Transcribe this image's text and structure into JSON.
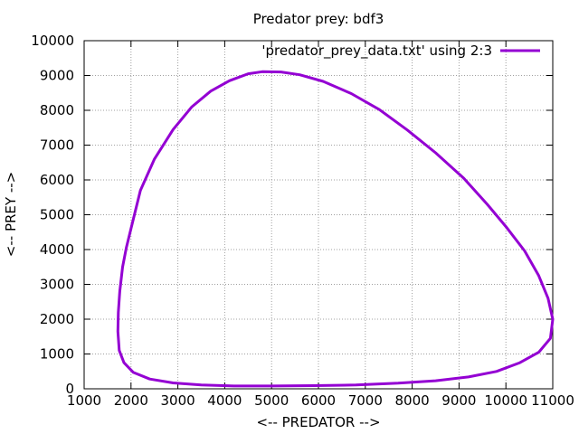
{
  "chart_data": {
    "type": "line",
    "title": "Predator prey: bdf3",
    "xlabel": "<-- PREDATOR -->",
    "ylabel": "<-- PREY -->",
    "xlim": [
      1000,
      11000
    ],
    "ylim": [
      0,
      10000
    ],
    "x_ticks": [
      1000,
      2000,
      3000,
      4000,
      5000,
      6000,
      7000,
      8000,
      9000,
      10000,
      11000
    ],
    "y_ticks": [
      0,
      1000,
      2000,
      3000,
      4000,
      5000,
      6000,
      7000,
      8000,
      9000,
      10000
    ],
    "grid": true,
    "legend_position": "top-right",
    "series": [
      {
        "name": "'predator_prey_data.txt' using 2:3",
        "color": "#9400d3",
        "points": [
          [
            2000,
            4600
          ],
          [
            2200,
            5700
          ],
          [
            2500,
            6600
          ],
          [
            2900,
            7450
          ],
          [
            3300,
            8100
          ],
          [
            3700,
            8550
          ],
          [
            4100,
            8850
          ],
          [
            4500,
            9050
          ],
          [
            4800,
            9110
          ],
          [
            5200,
            9100
          ],
          [
            5600,
            9020
          ],
          [
            6100,
            8830
          ],
          [
            6700,
            8480
          ],
          [
            7300,
            8020
          ],
          [
            7900,
            7430
          ],
          [
            8500,
            6780
          ],
          [
            9100,
            6050
          ],
          [
            9600,
            5300
          ],
          [
            10000,
            4660
          ],
          [
            10400,
            3960
          ],
          [
            10700,
            3250
          ],
          [
            10900,
            2600
          ],
          [
            11000,
            2000
          ],
          [
            10950,
            1450
          ],
          [
            10700,
            1050
          ],
          [
            10300,
            750
          ],
          [
            9800,
            500
          ],
          [
            9200,
            340
          ],
          [
            8500,
            230
          ],
          [
            7700,
            160
          ],
          [
            6800,
            110
          ],
          [
            5900,
            90
          ],
          [
            5000,
            80
          ],
          [
            4200,
            80
          ],
          [
            3500,
            110
          ],
          [
            2900,
            170
          ],
          [
            2400,
            280
          ],
          [
            2050,
            470
          ],
          [
            1850,
            750
          ],
          [
            1750,
            1100
          ],
          [
            1720,
            1650
          ],
          [
            1730,
            2200
          ],
          [
            1760,
            2800
          ],
          [
            1820,
            3500
          ],
          [
            1900,
            4050
          ],
          [
            2000,
            4600
          ]
        ]
      }
    ]
  }
}
